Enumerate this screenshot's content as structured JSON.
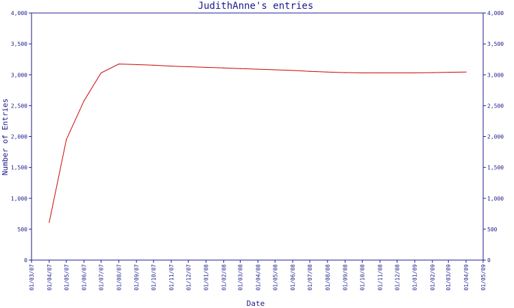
{
  "chart_data": {
    "type": "line",
    "title": "JudithAnne's entries",
    "xlabel": "Date",
    "ylabel": "Number of Entries",
    "ylim": [
      0,
      4000
    ],
    "yticks": [
      0,
      500,
      1000,
      1500,
      2000,
      2500,
      3000,
      3500,
      4000
    ],
    "ytick_labels": [
      "0",
      "500",
      "1,000",
      "1,500",
      "2,000",
      "2,500",
      "3,000",
      "3,500",
      "4,000"
    ],
    "x_tick_labels": [
      "01/03/07",
      "01/04/07",
      "01/05/07",
      "01/06/07",
      "01/07/07",
      "01/08/07",
      "01/09/07",
      "01/10/07",
      "01/11/07",
      "01/12/07",
      "01/01/08",
      "01/02/08",
      "01/03/08",
      "01/04/08",
      "01/05/08",
      "01/06/08",
      "01/07/08",
      "01/08/08",
      "01/09/08",
      "01/10/08",
      "01/11/08",
      "01/12/08",
      "01/01/09",
      "01/02/09",
      "01/03/09",
      "01/04/09",
      "01/05/09"
    ],
    "grid": false,
    "right_axis": true,
    "line_color": "#cc0000",
    "axis_color": "#1a1a8c",
    "series": [
      {
        "values": [
          [
            "01/04/07",
            610
          ],
          [
            "01/05/07",
            1950
          ],
          [
            "01/06/07",
            2580
          ],
          [
            "01/07/07",
            3030
          ],
          [
            "01/08/07",
            3175
          ],
          [
            "01/09/07",
            3165
          ],
          [
            "01/10/07",
            3155
          ],
          [
            "01/11/07",
            3140
          ],
          [
            "01/12/07",
            3130
          ],
          [
            "01/01/08",
            3120
          ],
          [
            "01/02/08",
            3110
          ],
          [
            "01/03/08",
            3100
          ],
          [
            "01/04/08",
            3090
          ],
          [
            "01/05/08",
            3080
          ],
          [
            "01/06/08",
            3070
          ],
          [
            "01/07/08",
            3055
          ],
          [
            "01/08/08",
            3045
          ],
          [
            "01/09/08",
            3035
          ],
          [
            "01/10/08",
            3030
          ],
          [
            "01/11/08",
            3030
          ],
          [
            "01/12/08",
            3030
          ],
          [
            "01/01/09",
            3030
          ],
          [
            "01/02/09",
            3035
          ],
          [
            "01/03/09",
            3040
          ],
          [
            "01/04/09",
            3045
          ]
        ]
      }
    ]
  }
}
